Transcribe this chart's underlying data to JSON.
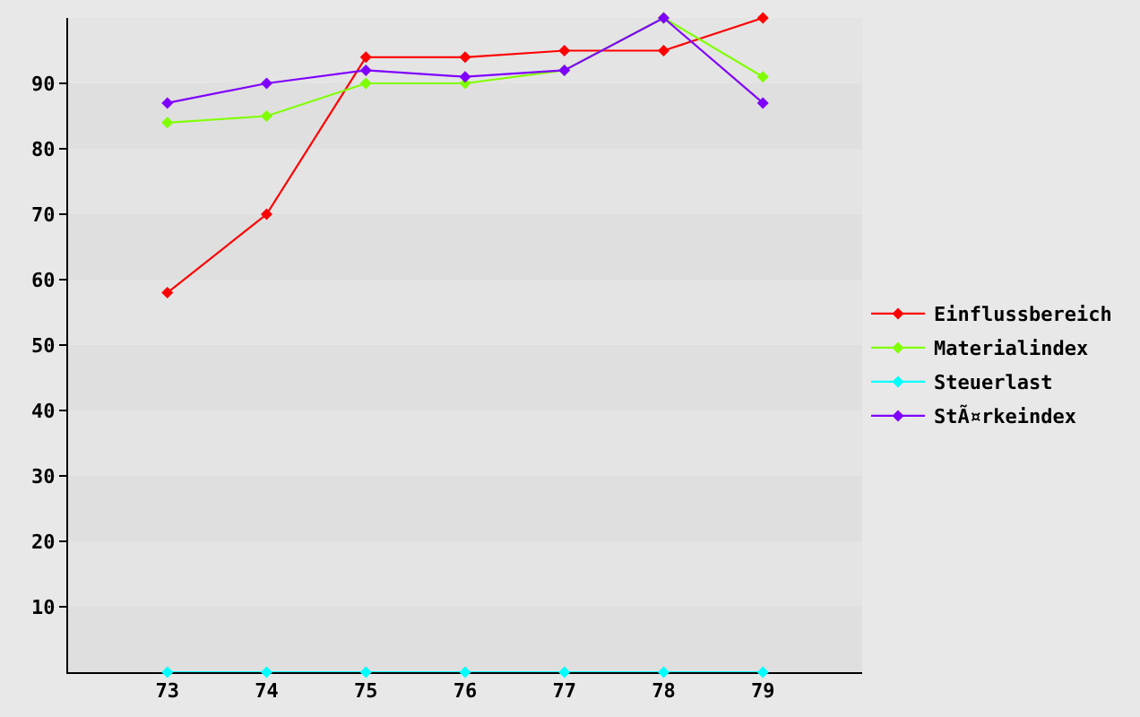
{
  "chart_data": {
    "type": "line",
    "x": [
      73,
      74,
      75,
      76,
      77,
      78,
      79
    ],
    "xlim": [
      72,
      80
    ],
    "xticks": [
      73,
      74,
      75,
      76,
      77,
      78,
      79
    ],
    "ylim": [
      0,
      100
    ],
    "yticks": [
      10,
      20,
      30,
      40,
      50,
      60,
      70,
      80,
      90
    ],
    "series": [
      {
        "name": "Einflussbereich",
        "color": "#ff0000",
        "values": [
          58,
          70,
          94,
          94,
          95,
          95,
          100
        ]
      },
      {
        "name": "Materialindex",
        "color": "#80ff00",
        "values": [
          84,
          85,
          90,
          90,
          92,
          100,
          91
        ]
      },
      {
        "name": "Steuerlast",
        "color": "#00ffff",
        "values": [
          0,
          0,
          0,
          0,
          0,
          0,
          0
        ]
      },
      {
        "name": "StÃ¤rkeindex",
        "color": "#8000ff",
        "values": [
          87,
          90,
          92,
          91,
          92,
          100,
          87
        ]
      }
    ],
    "marker": "diamond",
    "line_style": "solid",
    "legend": "right"
  }
}
